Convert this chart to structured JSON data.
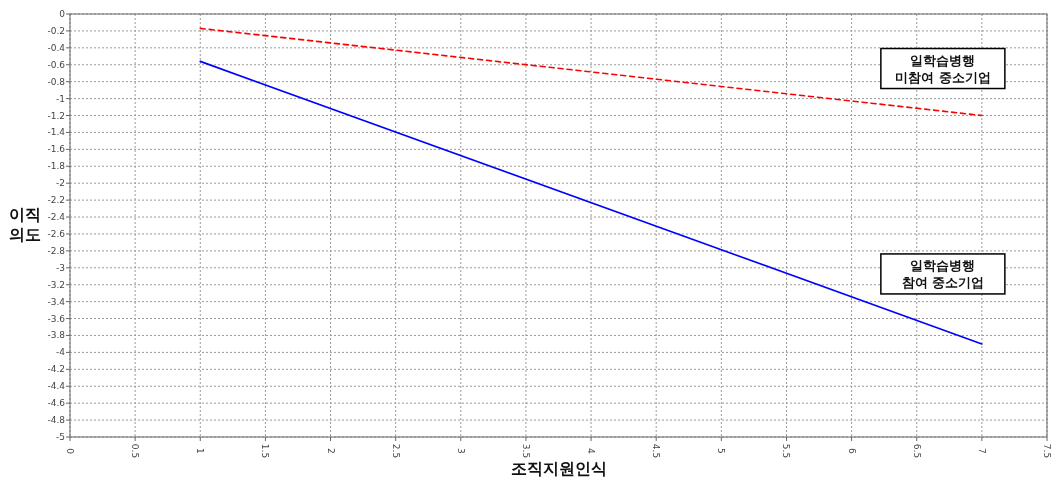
{
  "chart_data": {
    "type": "line",
    "xlabel": "조직지원인식",
    "ylabel": "이직 의도",
    "x": [
      1,
      7
    ],
    "series": [
      {
        "name": "일학습병행 미참여 중소기업",
        "color": "#ff0000",
        "line_style": "dashed",
        "values": [
          -0.17,
          -1.2
        ]
      },
      {
        "name": "일학습병행 참여 중소기업",
        "color": "#0000ff",
        "line_style": "solid",
        "values": [
          -0.56,
          -3.9
        ]
      }
    ],
    "xlim": [
      0,
      7.5
    ],
    "xticks": [
      0,
      0.5,
      1,
      1.5,
      2,
      2.5,
      3,
      3.5,
      4,
      4.5,
      5,
      5.5,
      6,
      6.5,
      7,
      7.5
    ],
    "ylim": [
      -5,
      0
    ],
    "yticks": [
      0,
      -0.2,
      -0.4,
      -0.6,
      -0.8,
      -1,
      -1.2,
      -1.4,
      -1.6,
      -1.8,
      -2,
      -2.2,
      -2.4,
      -2.6,
      -2.8,
      -3,
      -3.2,
      -3.4,
      -3.6,
      -3.8,
      -4,
      -4.2,
      -4.4,
      -4.6,
      -4.8,
      -5
    ],
    "grid": true,
    "marker": "none"
  }
}
